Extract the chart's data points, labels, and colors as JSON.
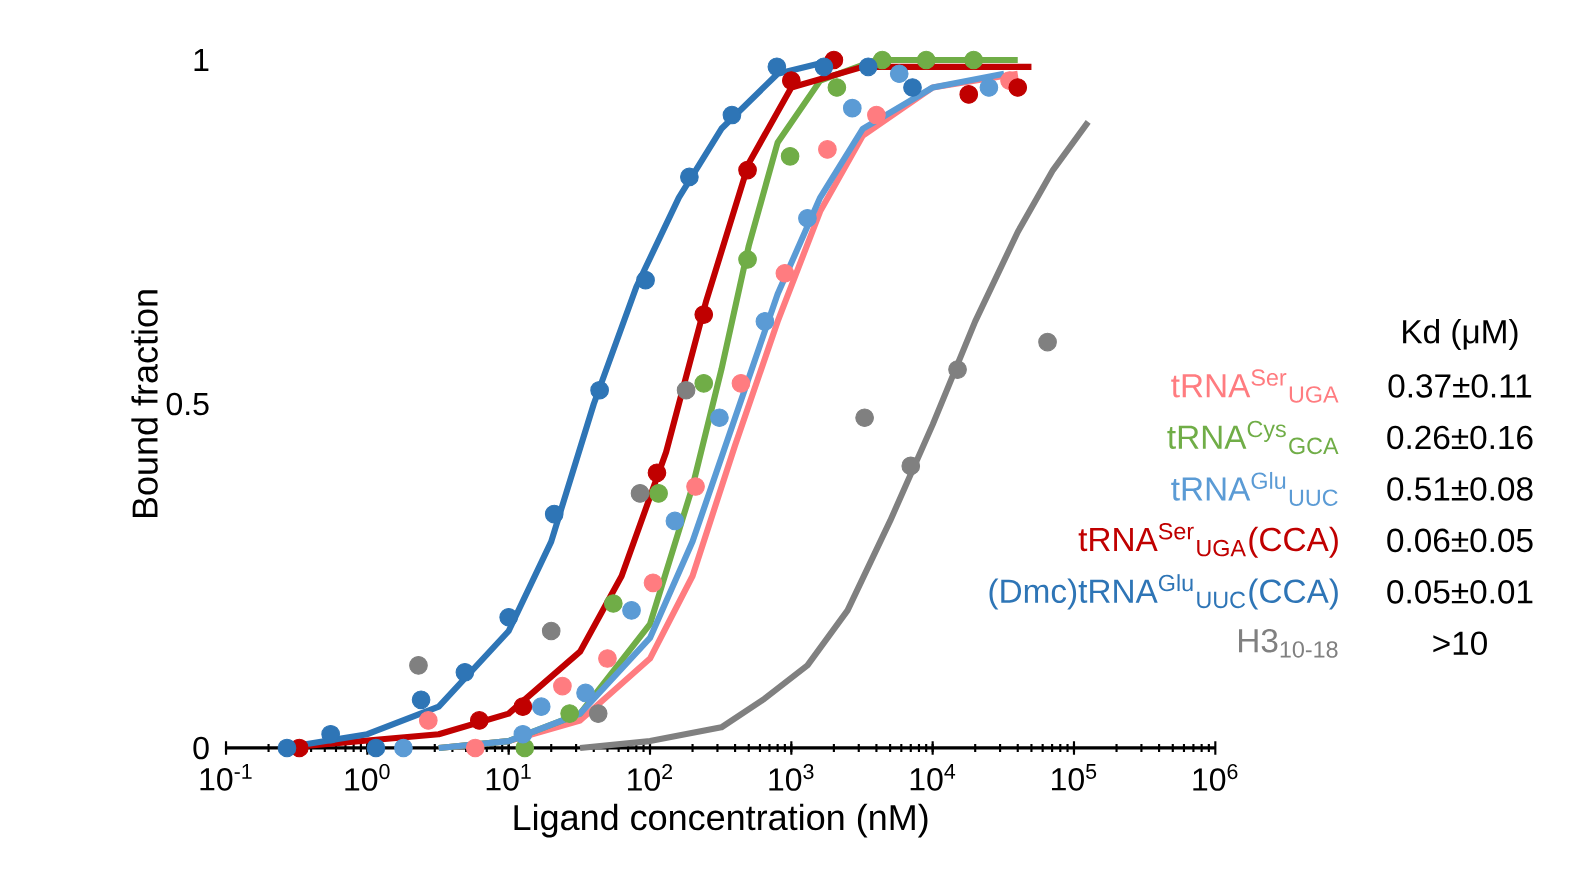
{
  "chart_data": {
    "type": "scatter",
    "xlabel": "Ligand concentration (nM)",
    "ylabel": "Bound fraction",
    "log": "x",
    "legend": "right",
    "legend_title": "Kd (μM)",
    "xlim": [
      0.1,
      1000000
    ],
    "xticks": [
      {
        "value": 0.1,
        "label": "10$^{-1}$"
      },
      {
        "value": 1,
        "label": "10$^{0}$"
      },
      {
        "value": 10,
        "label": "10$^{1}$"
      },
      {
        "value": 100,
        "label": "10$^{2}$"
      },
      {
        "value": 1000,
        "label": "10$^{3}$"
      },
      {
        "value": 10000,
        "label": "10$^{4}$"
      },
      {
        "value": 100000,
        "label": "10$^{5}$"
      },
      {
        "value": 1000000,
        "label": "10$^{6}$"
      }
    ],
    "ylim": [
      0,
      1
    ],
    "yticks": [
      0,
      0.5,
      1
    ],
    "annotations": [
      "0.37±0.11",
      "0.26±0.16",
      "0.51±0.08",
      "0.06±0.05",
      "0.05±0.01",
      ">10"
    ],
    "series": [
      {
        "type": "scatter",
        "marker": "circle",
        "name": "tRNA$^{Ser}$$_{UGA}$",
        "color": "#ff7c80",
        "x": [
          2.7,
          5.8,
          24,
          50,
          105,
          210,
          440,
          900,
          1800,
          4000,
          35000
        ],
        "values": [
          0.04,
          0.0,
          0.09,
          0.13,
          0.24,
          0.38,
          0.53,
          0.69,
          0.87,
          0.92,
          0.97
        ]
      },
      {
        "type": "scatter",
        "marker": "circle",
        "name": "tRNA$^{Cys}$$_{GCA}$",
        "color": "#70ad47",
        "x": [
          13,
          27,
          55,
          115,
          240,
          490,
          980,
          2100,
          4400,
          9000,
          19500
        ],
        "values": [
          0.0,
          0.05,
          0.21,
          0.37,
          0.53,
          0.71,
          0.86,
          0.96,
          1.0,
          1.0,
          1.0
        ]
      },
      {
        "type": "scatter",
        "marker": "circle",
        "name": "tRNA$^{Glu}$$_{UUC}$",
        "color": "#5b9bd5",
        "x": [
          1.8,
          12.6,
          17,
          35,
          74,
          150,
          310,
          650,
          1300,
          2700,
          5800,
          25000
        ],
        "values": [
          0.0,
          0.02,
          0.06,
          0.08,
          0.2,
          0.33,
          0.48,
          0.62,
          0.77,
          0.93,
          0.98,
          0.96
        ]
      },
      {
        "type": "scatter",
        "marker": "circle",
        "name": "tRNA$^{Ser}$$_{UGA}$(CCA)",
        "color": "#c00000",
        "x": [
          0.33,
          6.2,
          12.6,
          112,
          240,
          490,
          1000,
          2000,
          18000,
          40000
        ],
        "values": [
          0.0,
          0.04,
          0.06,
          0.4,
          0.63,
          0.84,
          0.97,
          1.0,
          0.95,
          0.96
        ]
      },
      {
        "type": "scatter",
        "marker": "circle",
        "name": "(Dmc)tRNA$^{Glu}$$_{UUC}$(CCA)",
        "color": "#2e75b6",
        "x": [
          0.27,
          0.55,
          1.15,
          2.4,
          4.9,
          10,
          21,
          44,
          93,
          190,
          380,
          790,
          1700,
          3500,
          7200
        ],
        "values": [
          0.0,
          0.02,
          0.0,
          0.07,
          0.11,
          0.19,
          0.34,
          0.52,
          0.68,
          0.83,
          0.92,
          0.99,
          0.99,
          0.99,
          0.96
        ]
      },
      {
        "type": "scatter",
        "marker": "circle",
        "name": "H3$_{10-18}$",
        "color": "#808080",
        "x": [
          2.3,
          20,
          43,
          85,
          180,
          3300,
          7000,
          15000,
          65000
        ],
        "values": [
          0.12,
          0.17,
          0.05,
          0.37,
          0.52,
          0.48,
          0.41,
          0.55,
          0.59
        ]
      },
      {
        "type": "line",
        "marker": "none",
        "color": "#ff7c80",
        "x": [
          3.2,
          10,
          32,
          100,
          200,
          400,
          800,
          1600,
          3200,
          10000,
          40000
        ],
        "values": [
          0.0,
          0.01,
          0.04,
          0.13,
          0.25,
          0.44,
          0.62,
          0.78,
          0.89,
          0.96,
          0.98
        ]
      },
      {
        "type": "line",
        "marker": "none",
        "color": "#70ad47",
        "x": [
          3.2,
          10,
          32,
          100,
          200,
          320,
          500,
          800,
          1600,
          4000,
          40000
        ],
        "values": [
          0.0,
          0.01,
          0.05,
          0.18,
          0.38,
          0.55,
          0.73,
          0.88,
          0.97,
          1.0,
          1.0
        ]
      },
      {
        "type": "line",
        "marker": "none",
        "color": "#5b9bd5",
        "x": [
          3.2,
          10,
          32,
          100,
          200,
          400,
          800,
          1600,
          3200,
          10000,
          32000
        ],
        "values": [
          0.0,
          0.01,
          0.05,
          0.16,
          0.3,
          0.48,
          0.66,
          0.8,
          0.9,
          0.96,
          0.98
        ]
      },
      {
        "type": "line",
        "marker": "none",
        "color": "#c00000",
        "x": [
          0.25,
          3.2,
          10,
          32,
          63,
          130,
          250,
          500,
          1000,
          3200,
          50000
        ],
        "values": [
          0.0,
          0.02,
          0.05,
          0.14,
          0.25,
          0.43,
          0.65,
          0.85,
          0.96,
          0.99,
          0.99
        ]
      },
      {
        "type": "line",
        "marker": "none",
        "color": "#2e75b6",
        "x": [
          0.25,
          1,
          3.2,
          10,
          20,
          40,
          80,
          160,
          320,
          800,
          2000
        ],
        "values": [
          0.0,
          0.02,
          0.06,
          0.17,
          0.3,
          0.5,
          0.67,
          0.8,
          0.9,
          0.98,
          1.0
        ]
      },
      {
        "type": "line",
        "marker": "none",
        "color": "#808080",
        "x": [
          32,
          100,
          320,
          630,
          1300,
          2500,
          5000,
          10000,
          20000,
          40000,
          71000,
          126000
        ],
        "values": [
          0.0,
          0.01,
          0.03,
          0.07,
          0.12,
          0.2,
          0.33,
          0.47,
          0.62,
          0.75,
          0.84,
          0.91
        ]
      }
    ]
  }
}
